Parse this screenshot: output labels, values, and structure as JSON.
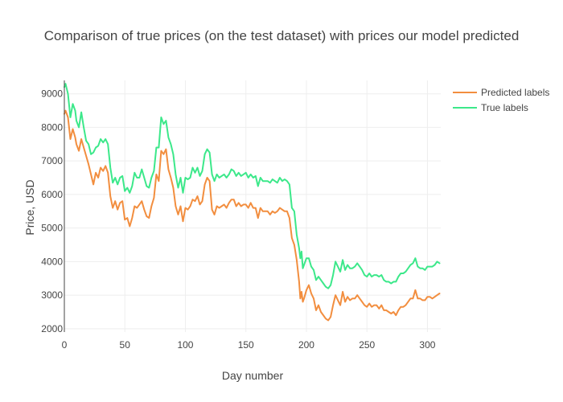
{
  "chart_data": {
    "type": "line",
    "title": "Comparison of true prices (on the test dataset) with prices our model predicted",
    "xlabel": "Day number",
    "ylabel": "Price, USD",
    "xlim": [
      0,
      311
    ],
    "ylim": [
      1900,
      9400
    ],
    "x_ticks": [
      0,
      50,
      100,
      150,
      200,
      250,
      300
    ],
    "y_ticks": [
      2000,
      3000,
      4000,
      5000,
      6000,
      7000,
      8000,
      9000
    ],
    "grid": true,
    "legend_position": "top-right",
    "series": [
      {
        "name": "Predicted labels",
        "color": "#f28e3f",
        "points": [
          [
            0,
            8400
          ],
          [
            1,
            8500
          ],
          [
            3,
            8300
          ],
          [
            5,
            7650
          ],
          [
            7,
            7950
          ],
          [
            9,
            7700
          ],
          [
            10,
            7500
          ],
          [
            12,
            7300
          ],
          [
            14,
            7650
          ],
          [
            16,
            7400
          ],
          [
            18,
            7150
          ],
          [
            20,
            6900
          ],
          [
            22,
            6600
          ],
          [
            24,
            6300
          ],
          [
            26,
            6650
          ],
          [
            28,
            6500
          ],
          [
            30,
            6800
          ],
          [
            32,
            6700
          ],
          [
            34,
            6850
          ],
          [
            36,
            6650
          ],
          [
            38,
            5950
          ],
          [
            40,
            5600
          ],
          [
            42,
            5800
          ],
          [
            44,
            5550
          ],
          [
            46,
            5750
          ],
          [
            48,
            5800
          ],
          [
            50,
            5250
          ],
          [
            52,
            5300
          ],
          [
            54,
            5050
          ],
          [
            56,
            5300
          ],
          [
            58,
            5650
          ],
          [
            60,
            5600
          ],
          [
            62,
            5700
          ],
          [
            64,
            5800
          ],
          [
            66,
            5550
          ],
          [
            68,
            5350
          ],
          [
            70,
            5300
          ],
          [
            72,
            5650
          ],
          [
            74,
            5900
          ],
          [
            76,
            6600
          ],
          [
            78,
            6400
          ],
          [
            80,
            7300
          ],
          [
            82,
            7200
          ],
          [
            84,
            7350
          ],
          [
            86,
            6750
          ],
          [
            88,
            6500
          ],
          [
            90,
            6200
          ],
          [
            92,
            5650
          ],
          [
            94,
            5400
          ],
          [
            96,
            5650
          ],
          [
            98,
            5200
          ],
          [
            100,
            5600
          ],
          [
            102,
            5550
          ],
          [
            104,
            5650
          ],
          [
            106,
            5850
          ],
          [
            108,
            5800
          ],
          [
            110,
            5950
          ],
          [
            112,
            5700
          ],
          [
            114,
            5800
          ],
          [
            116,
            6300
          ],
          [
            118,
            6500
          ],
          [
            120,
            6400
          ],
          [
            122,
            5550
          ],
          [
            124,
            5400
          ],
          [
            126,
            5650
          ],
          [
            128,
            5600
          ],
          [
            130,
            5650
          ],
          [
            132,
            5700
          ],
          [
            134,
            5600
          ],
          [
            136,
            5750
          ],
          [
            138,
            5850
          ],
          [
            140,
            5850
          ],
          [
            142,
            5650
          ],
          [
            144,
            5750
          ],
          [
            146,
            5650
          ],
          [
            148,
            5700
          ],
          [
            150,
            5700
          ],
          [
            152,
            5600
          ],
          [
            154,
            5750
          ],
          [
            156,
            5600
          ],
          [
            158,
            5600
          ],
          [
            160,
            5300
          ],
          [
            162,
            5600
          ],
          [
            164,
            5500
          ],
          [
            166,
            5500
          ],
          [
            168,
            5500
          ],
          [
            170,
            5400
          ],
          [
            172,
            5500
          ],
          [
            174,
            5450
          ],
          [
            176,
            5500
          ],
          [
            178,
            5600
          ],
          [
            180,
            5550
          ],
          [
            182,
            5500
          ],
          [
            184,
            5500
          ],
          [
            186,
            5300
          ],
          [
            188,
            4700
          ],
          [
            190,
            4500
          ],
          [
            192,
            4050
          ],
          [
            194,
            3400
          ],
          [
            195,
            2900
          ],
          [
            196,
            3100
          ],
          [
            197,
            2800
          ],
          [
            198,
            2900
          ],
          [
            200,
            3150
          ],
          [
            202,
            3300
          ],
          [
            204,
            3050
          ],
          [
            206,
            2900
          ],
          [
            208,
            2550
          ],
          [
            210,
            2700
          ],
          [
            212,
            2500
          ],
          [
            214,
            2400
          ],
          [
            216,
            2300
          ],
          [
            218,
            2250
          ],
          [
            220,
            2350
          ],
          [
            222,
            2700
          ],
          [
            224,
            3000
          ],
          [
            226,
            2850
          ],
          [
            228,
            2700
          ],
          [
            230,
            3100
          ],
          [
            232,
            2800
          ],
          [
            234,
            2950
          ],
          [
            236,
            2850
          ],
          [
            238,
            2900
          ],
          [
            240,
            2900
          ],
          [
            242,
            3000
          ],
          [
            244,
            2900
          ],
          [
            246,
            2800
          ],
          [
            248,
            2700
          ],
          [
            250,
            2650
          ],
          [
            252,
            2750
          ],
          [
            254,
            2650
          ],
          [
            256,
            2700
          ],
          [
            258,
            2700
          ],
          [
            260,
            2600
          ],
          [
            262,
            2700
          ],
          [
            264,
            2550
          ],
          [
            266,
            2550
          ],
          [
            268,
            2500
          ],
          [
            270,
            2450
          ],
          [
            272,
            2500
          ],
          [
            274,
            2400
          ],
          [
            276,
            2550
          ],
          [
            278,
            2650
          ],
          [
            280,
            2650
          ],
          [
            282,
            2700
          ],
          [
            284,
            2800
          ],
          [
            286,
            2900
          ],
          [
            288,
            2900
          ],
          [
            290,
            3150
          ],
          [
            292,
            2900
          ],
          [
            294,
            2900
          ],
          [
            296,
            2850
          ],
          [
            298,
            2850
          ],
          [
            300,
            2950
          ],
          [
            302,
            2950
          ],
          [
            304,
            2900
          ],
          [
            306,
            2950
          ],
          [
            308,
            3000
          ],
          [
            310,
            3050
          ]
        ]
      },
      {
        "name": "True labels",
        "color": "#3ce88a",
        "points": [
          [
            0,
            9200
          ],
          [
            1,
            9300
          ],
          [
            3,
            9000
          ],
          [
            5,
            8300
          ],
          [
            7,
            8700
          ],
          [
            9,
            8500
          ],
          [
            10,
            8200
          ],
          [
            12,
            8000
          ],
          [
            14,
            8450
          ],
          [
            16,
            8000
          ],
          [
            18,
            7600
          ],
          [
            20,
            7500
          ],
          [
            22,
            7200
          ],
          [
            24,
            7250
          ],
          [
            26,
            7400
          ],
          [
            28,
            7450
          ],
          [
            30,
            7650
          ],
          [
            32,
            7550
          ],
          [
            34,
            7650
          ],
          [
            36,
            7500
          ],
          [
            38,
            6800
          ],
          [
            40,
            6350
          ],
          [
            42,
            6500
          ],
          [
            44,
            6300
          ],
          [
            46,
            6500
          ],
          [
            48,
            6550
          ],
          [
            50,
            6100
          ],
          [
            52,
            6200
          ],
          [
            54,
            6050
          ],
          [
            56,
            6250
          ],
          [
            58,
            6650
          ],
          [
            60,
            6500
          ],
          [
            62,
            6500
          ],
          [
            64,
            6750
          ],
          [
            66,
            6500
          ],
          [
            68,
            6250
          ],
          [
            70,
            6200
          ],
          [
            72,
            6500
          ],
          [
            74,
            6700
          ],
          [
            76,
            7400
          ],
          [
            78,
            7400
          ],
          [
            80,
            8300
          ],
          [
            82,
            8100
          ],
          [
            84,
            8200
          ],
          [
            86,
            7700
          ],
          [
            88,
            7500
          ],
          [
            90,
            7200
          ],
          [
            92,
            6600
          ],
          [
            94,
            6200
          ],
          [
            96,
            6500
          ],
          [
            98,
            6050
          ],
          [
            100,
            6500
          ],
          [
            102,
            6450
          ],
          [
            104,
            6500
          ],
          [
            106,
            6800
          ],
          [
            108,
            6650
          ],
          [
            110,
            6800
          ],
          [
            112,
            6550
          ],
          [
            114,
            6700
          ],
          [
            116,
            7200
          ],
          [
            118,
            7350
          ],
          [
            120,
            7250
          ],
          [
            122,
            6600
          ],
          [
            124,
            6400
          ],
          [
            126,
            6600
          ],
          [
            128,
            6500
          ],
          [
            130,
            6550
          ],
          [
            132,
            6600
          ],
          [
            134,
            6500
          ],
          [
            136,
            6600
          ],
          [
            138,
            6750
          ],
          [
            140,
            6700
          ],
          [
            142,
            6550
          ],
          [
            144,
            6650
          ],
          [
            146,
            6550
          ],
          [
            148,
            6600
          ],
          [
            150,
            6650
          ],
          [
            152,
            6500
          ],
          [
            154,
            6600
          ],
          [
            156,
            6500
          ],
          [
            158,
            6550
          ],
          [
            160,
            6250
          ],
          [
            162,
            6500
          ],
          [
            164,
            6400
          ],
          [
            166,
            6400
          ],
          [
            168,
            6400
          ],
          [
            170,
            6350
          ],
          [
            172,
            6450
          ],
          [
            174,
            6400
          ],
          [
            176,
            6350
          ],
          [
            178,
            6500
          ],
          [
            180,
            6400
          ],
          [
            182,
            6450
          ],
          [
            184,
            6400
          ],
          [
            186,
            6300
          ],
          [
            188,
            5600
          ],
          [
            190,
            5500
          ],
          [
            192,
            4800
          ],
          [
            194,
            4400
          ],
          [
            195,
            4100
          ],
          [
            196,
            4300
          ],
          [
            197,
            3800
          ],
          [
            198,
            3900
          ],
          [
            200,
            4100
          ],
          [
            202,
            4100
          ],
          [
            204,
            3850
          ],
          [
            206,
            3750
          ],
          [
            208,
            3450
          ],
          [
            210,
            3550
          ],
          [
            212,
            3450
          ],
          [
            214,
            3350
          ],
          [
            216,
            3250
          ],
          [
            218,
            3200
          ],
          [
            220,
            3300
          ],
          [
            222,
            3600
          ],
          [
            224,
            4000
          ],
          [
            226,
            3850
          ],
          [
            228,
            3700
          ],
          [
            230,
            4050
          ],
          [
            232,
            3750
          ],
          [
            234,
            3900
          ],
          [
            236,
            3800
          ],
          [
            238,
            3800
          ],
          [
            240,
            3850
          ],
          [
            242,
            3950
          ],
          [
            244,
            3850
          ],
          [
            246,
            3750
          ],
          [
            248,
            3600
          ],
          [
            250,
            3550
          ],
          [
            252,
            3650
          ],
          [
            254,
            3550
          ],
          [
            256,
            3600
          ],
          [
            258,
            3600
          ],
          [
            260,
            3550
          ],
          [
            262,
            3600
          ],
          [
            264,
            3450
          ],
          [
            266,
            3400
          ],
          [
            268,
            3400
          ],
          [
            270,
            3350
          ],
          [
            272,
            3400
          ],
          [
            274,
            3400
          ],
          [
            276,
            3550
          ],
          [
            278,
            3650
          ],
          [
            280,
            3650
          ],
          [
            282,
            3700
          ],
          [
            284,
            3800
          ],
          [
            286,
            3900
          ],
          [
            288,
            3950
          ],
          [
            290,
            4100
          ],
          [
            292,
            3850
          ],
          [
            294,
            3800
          ],
          [
            296,
            3800
          ],
          [
            298,
            3750
          ],
          [
            300,
            3850
          ],
          [
            302,
            3850
          ],
          [
            304,
            3850
          ],
          [
            306,
            3900
          ],
          [
            308,
            4000
          ],
          [
            310,
            3950
          ]
        ]
      }
    ]
  }
}
